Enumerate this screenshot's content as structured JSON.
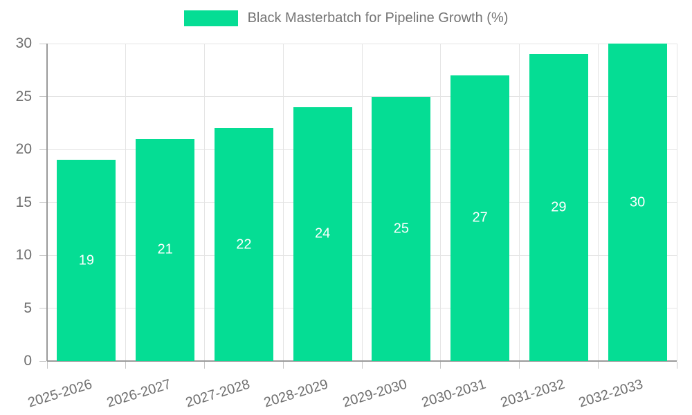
{
  "legend": {
    "label": "Black Masterbatch for Pipeline Growth (%)"
  },
  "colors": {
    "bar": "#05dd94",
    "grid": "#e4e4e4",
    "axis": "#9a9a9a",
    "tick": "#c6c6c6",
    "tick_text": "#6f6f6f",
    "legend_text": "#757575",
    "value_text": "#ffffff",
    "background": "#ffffff"
  },
  "chart_data": {
    "type": "bar",
    "title": "",
    "xlabel": "",
    "ylabel": "",
    "categories": [
      "2025-2026",
      "2026-2027",
      "2027-2028",
      "2028-2029",
      "2029-2030",
      "2030-2031",
      "2031-2032",
      "2032-2033"
    ],
    "series": [
      {
        "name": "Black Masterbatch for Pipeline Growth (%)",
        "values": [
          19,
          21,
          22,
          24,
          25,
          27,
          29,
          30
        ]
      }
    ],
    "value_labels": [
      19,
      21,
      22,
      24,
      25,
      27,
      29,
      30
    ],
    "ylim": [
      0,
      30
    ],
    "yticks": [
      0,
      5,
      10,
      15,
      20,
      25,
      30
    ],
    "grid": true,
    "legend_position": "top",
    "x_label_rotation_deg": -17
  }
}
